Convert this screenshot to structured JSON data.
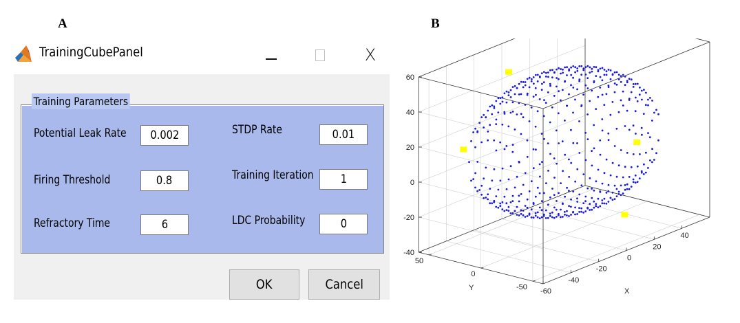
{
  "figure": {
    "panel_a_label": "A",
    "panel_b_label": "B"
  },
  "window": {
    "title": "TrainingCubePanel",
    "icon": "matlab-logo-icon",
    "controls": {
      "minimize": "minimize-icon",
      "maximize": "maximize-icon",
      "close_glyph": "X"
    }
  },
  "group": {
    "title": "Training Parameters",
    "params": [
      {
        "label": "Potential Leak Rate",
        "value": "0.002"
      },
      {
        "label": "Firing Threshold",
        "value": "0.8"
      },
      {
        "label": "Refractory Time",
        "value": "6"
      },
      {
        "label": "STDP Rate",
        "value": "0.01"
      },
      {
        "label": "Training Iteration",
        "value": "1"
      },
      {
        "label": "LDC Probability",
        "value": "0"
      }
    ]
  },
  "buttons": {
    "ok": "OK",
    "cancel": "Cancel"
  },
  "chart_data": {
    "type": "scatter3d",
    "xlabel": "X",
    "ylabel": "Y",
    "zlabel": "",
    "xlim": [
      -60,
      60
    ],
    "ylim": [
      -60,
      60
    ],
    "zlim": [
      -40,
      60
    ],
    "x_ticks": [
      "-60",
      "-40",
      "-20",
      "0",
      "20",
      "40"
    ],
    "y_ticks": [
      "-50",
      "0",
      "50"
    ],
    "z_ticks": [
      "-40",
      "-20",
      "0",
      "20",
      "40",
      "60"
    ],
    "grid": true,
    "series": [
      {
        "marker": "dot",
        "color": "#1a1ad8",
        "description_shape": "ellipsoid",
        "grid_step": 6,
        "center": [
          0,
          0,
          10
        ],
        "radii": [
          55,
          58,
          42
        ]
      },
      {
        "marker": "square",
        "color": "#ffff00",
        "points": [
          [
            -50,
            30,
            20
          ],
          [
            -10,
            40,
            50
          ],
          [
            10,
            -45,
            -25
          ],
          [
            45,
            -10,
            0
          ]
        ]
      }
    ]
  }
}
